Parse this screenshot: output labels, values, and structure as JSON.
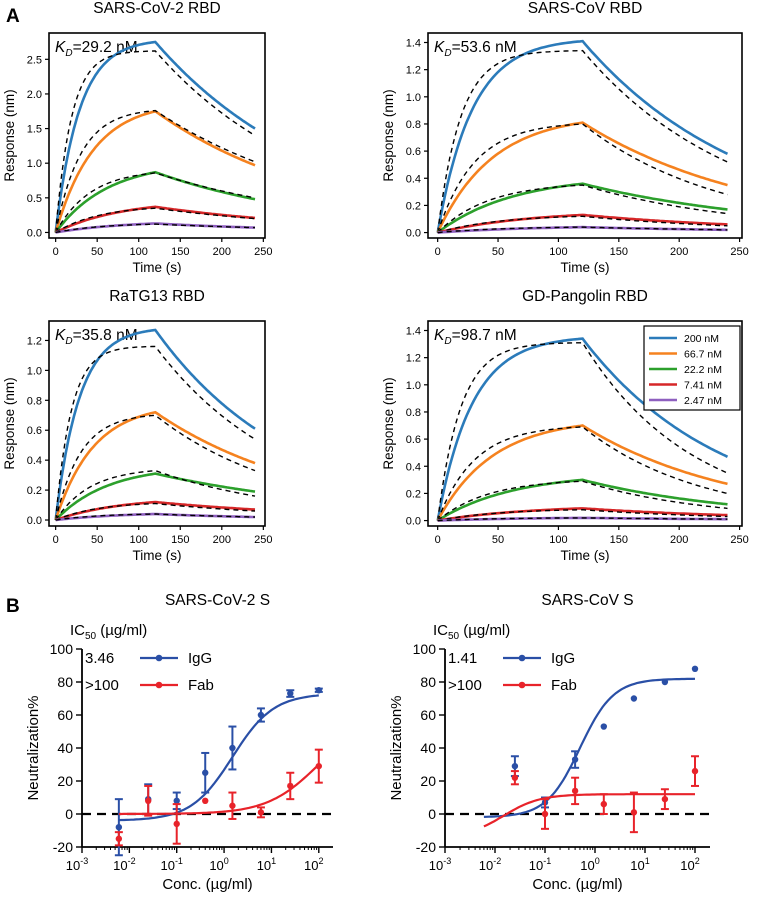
{
  "panel_labels": [
    "A",
    "B"
  ],
  "colors": {
    "c200": "#2b7bba",
    "c66": "#f5821f",
    "c22": "#2ca02c",
    "c7": "#d62728",
    "c2": "#8e5fbf",
    "fit": "#000000",
    "igg": "#2a4fa6",
    "fab": "#e8232a"
  },
  "legend": {
    "items": [
      {
        "label": "200 nM",
        "color": "#2b7bba"
      },
      {
        "label": "66.7 nM",
        "color": "#f5821f"
      },
      {
        "label": "22.2 nM",
        "color": "#2ca02c"
      },
      {
        "label": "7.41 nM",
        "color": "#d62728"
      },
      {
        "label": "2.47 nM",
        "color": "#8e5fbf"
      }
    ]
  },
  "chart_data": [
    {
      "type": "line",
      "title": "SARS-CoV-2 RBD",
      "kd_prefix": "K",
      "kd_sub": "D",
      "kd_value": "=29.2 nM",
      "xlabel": "Time (s)",
      "ylabel": "Response (nm)",
      "xlim": [
        -8,
        252
      ],
      "ylim": [
        -0.08,
        2.88
      ],
      "xticks": [
        "0",
        "50",
        "100",
        "150",
        "200",
        "250"
      ],
      "yticks": [
        "0.0",
        "0.5",
        "1.0",
        "1.5",
        "2.0",
        "2.5"
      ],
      "assoc_end_s": 120,
      "end_s": 240,
      "series": [
        {
          "name": "200 nM",
          "peak": 2.75,
          "end": 1.5,
          "fit_peak": 2.62,
          "fit_end": 1.4
        },
        {
          "name": "66.7 nM",
          "peak": 1.75,
          "end": 0.97,
          "fit_peak": 1.76,
          "fit_end": 1.02
        },
        {
          "name": "22.2 nM",
          "peak": 0.87,
          "end": 0.48,
          "fit_peak": 0.86,
          "fit_end": 0.5
        },
        {
          "name": "7.41 nM",
          "peak": 0.37,
          "end": 0.21,
          "fit_peak": 0.35,
          "fit_end": 0.2
        },
        {
          "name": "2.47 nM",
          "peak": 0.13,
          "end": 0.07,
          "fit_peak": 0.12,
          "fit_end": 0.07
        }
      ]
    },
    {
      "type": "line",
      "title": "SARS-CoV RBD",
      "kd_prefix": "K",
      "kd_sub": "D",
      "kd_value": "=53.6 nM",
      "xlabel": "Time (s)",
      "ylabel": "Response (nm)",
      "xlim": [
        -8,
        252
      ],
      "ylim": [
        -0.04,
        1.47
      ],
      "xticks": [
        "0",
        "50",
        "100",
        "150",
        "200",
        "250"
      ],
      "yticks": [
        "0.0",
        "0.2",
        "0.4",
        "0.6",
        "0.8",
        "1.0",
        "1.2",
        "1.4"
      ],
      "assoc_end_s": 120,
      "end_s": 240,
      "series": [
        {
          "name": "200 nM",
          "peak": 1.41,
          "end": 0.58,
          "fit_peak": 1.34,
          "fit_end": 0.52
        },
        {
          "name": "66.7 nM",
          "peak": 0.81,
          "end": 0.35,
          "fit_peak": 0.8,
          "fit_end": 0.28
        },
        {
          "name": "22.2 nM",
          "peak": 0.36,
          "end": 0.17,
          "fit_peak": 0.35,
          "fit_end": 0.14
        },
        {
          "name": "7.41 nM",
          "peak": 0.13,
          "end": 0.06,
          "fit_peak": 0.12,
          "fit_end": 0.05
        },
        {
          "name": "2.47 nM",
          "peak": 0.04,
          "end": 0.02,
          "fit_peak": 0.04,
          "fit_end": 0.02
        }
      ]
    },
    {
      "type": "line",
      "title": "RaTG13 RBD",
      "kd_prefix": "K",
      "kd_sub": "D",
      "kd_value": "=35.8 nM",
      "xlabel": "Time (s)",
      "ylabel": "Response (nm)",
      "xlim": [
        -8,
        252
      ],
      "ylim": [
        -0.04,
        1.33
      ],
      "xticks": [
        "0",
        "50",
        "100",
        "150",
        "200",
        "250"
      ],
      "yticks": [
        "0.0",
        "0.2",
        "0.4",
        "0.6",
        "0.8",
        "1.0",
        "1.2"
      ],
      "assoc_end_s": 120,
      "end_s": 240,
      "series": [
        {
          "name": "200 nM",
          "peak": 1.27,
          "end": 0.61,
          "fit_peak": 1.16,
          "fit_end": 0.54
        },
        {
          "name": "66.7 nM",
          "peak": 0.72,
          "end": 0.38,
          "fit_peak": 0.7,
          "fit_end": 0.33
        },
        {
          "name": "22.2 nM",
          "peak": 0.31,
          "end": 0.19,
          "fit_peak": 0.33,
          "fit_end": 0.16
        },
        {
          "name": "7.41 nM",
          "peak": 0.12,
          "end": 0.07,
          "fit_peak": 0.11,
          "fit_end": 0.06
        },
        {
          "name": "2.47 nM",
          "peak": 0.04,
          "end": 0.02,
          "fit_peak": 0.04,
          "fit_end": 0.02
        }
      ]
    },
    {
      "type": "line",
      "title": "GD-Pangolin RBD",
      "kd_prefix": "K",
      "kd_sub": "D",
      "kd_value": "=98.7 nM",
      "xlabel": "Time (s)",
      "ylabel": "Response (nm)",
      "xlim": [
        -8,
        252
      ],
      "ylim": [
        -0.04,
        1.47
      ],
      "xticks": [
        "0",
        "50",
        "100",
        "150",
        "200",
        "250"
      ],
      "yticks": [
        "0.0",
        "0.2",
        "0.4",
        "0.6",
        "0.8",
        "1.0",
        "1.2",
        "1.4"
      ],
      "assoc_end_s": 120,
      "end_s": 240,
      "series": [
        {
          "name": "200 nM",
          "peak": 1.34,
          "end": 0.47,
          "fit_peak": 1.31,
          "fit_end": 0.35
        },
        {
          "name": "66.7 nM",
          "peak": 0.7,
          "end": 0.27,
          "fit_peak": 0.69,
          "fit_end": 0.2
        },
        {
          "name": "22.2 nM",
          "peak": 0.3,
          "end": 0.12,
          "fit_peak": 0.29,
          "fit_end": 0.09
        },
        {
          "name": "7.41 nM",
          "peak": 0.09,
          "end": 0.04,
          "fit_peak": 0.08,
          "fit_end": 0.03
        },
        {
          "name": "2.47 nM",
          "peak": 0.02,
          "end": 0.01,
          "fit_peak": 0.02,
          "fit_end": 0.01
        }
      ]
    },
    {
      "type": "scatter",
      "title": "SARS-CoV-2 S",
      "ic50_label": "IC",
      "ic50_sub": "50",
      "ic50_unit": " (µg/ml)",
      "xlabel": "Conc. (µg/ml)",
      "ylabel": "Neutralization%",
      "xlim_log10": [
        -3,
        2.3
      ],
      "ylim": [
        -20,
        100
      ],
      "xticks": [
        {
          "base": "10",
          "exp": "-3"
        },
        {
          "base": "10",
          "exp": "-2"
        },
        {
          "base": "10",
          "exp": "-1"
        },
        {
          "base": "10",
          "exp": "0"
        },
        {
          "base": "10",
          "exp": "1"
        },
        {
          "base": "10",
          "exp": "2"
        }
      ],
      "yticks": [
        "-20",
        "0",
        "20",
        "40",
        "60",
        "80",
        "100"
      ],
      "series": [
        {
          "name": "IgG",
          "ic50": "3.46",
          "points": [
            {
              "x": 0.006,
              "y": -8,
              "err": 17
            },
            {
              "x": 0.025,
              "y": 9,
              "err": 9
            },
            {
              "x": 0.1,
              "y": 8,
              "err": 5
            },
            {
              "x": 0.4,
              "y": 25,
              "err": 12
            },
            {
              "x": 1.5,
              "y": 40,
              "err": 13
            },
            {
              "x": 6,
              "y": 60,
              "err": 4
            },
            {
              "x": 25,
              "y": 73,
              "err": 2
            },
            {
              "x": 100,
              "y": 75,
              "err": 1
            }
          ],
          "fit": {
            "bottom": -4,
            "top": 73,
            "ec50": 1.5,
            "hill": 1
          }
        },
        {
          "name": "Fab",
          "ic50": ">100",
          "points": [
            {
              "x": 0.006,
              "y": -15,
              "err": 4
            },
            {
              "x": 0.025,
              "y": 8,
              "err": 9
            },
            {
              "x": 0.1,
              "y": -6,
              "err": 12
            },
            {
              "x": 0.4,
              "y": 8,
              "err": 0
            },
            {
              "x": 1.5,
              "y": 5,
              "err": 8
            },
            {
              "x": 6,
              "y": 1,
              "err": 3
            },
            {
              "x": 25,
              "y": 17,
              "err": 8
            },
            {
              "x": 100,
              "y": 29,
              "err": 10
            }
          ],
          "fit": {
            "bottom": 0,
            "top": 60,
            "ec50": 100,
            "hill": 0.8
          }
        }
      ]
    },
    {
      "type": "scatter",
      "title": "SARS-CoV S",
      "ic50_label": "IC",
      "ic50_sub": "50",
      "ic50_unit": " (µg/ml)",
      "xlabel": "Conc. (µg/ml)",
      "ylabel": "Neutralization%",
      "xlim_log10": [
        -3,
        2.3
      ],
      "ylim": [
        -20,
        100
      ],
      "xticks": [
        {
          "base": "10",
          "exp": "-3"
        },
        {
          "base": "10",
          "exp": "-2"
        },
        {
          "base": "10",
          "exp": "-1"
        },
        {
          "base": "10",
          "exp": "0"
        },
        {
          "base": "10",
          "exp": "1"
        },
        {
          "base": "10",
          "exp": "2"
        }
      ],
      "yticks": [
        "-20",
        "0",
        "20",
        "40",
        "60",
        "80",
        "100"
      ],
      "series": [
        {
          "name": "IgG",
          "ic50": "1.41",
          "points": [
            {
              "x": 0.025,
              "y": 29,
              "err": 6
            },
            {
              "x": 0.1,
              "y": 7,
              "err": 3
            },
            {
              "x": 0.4,
              "y": 33,
              "err": 5
            },
            {
              "x": 1.5,
              "y": 53,
              "err": 0
            },
            {
              "x": 6,
              "y": 70,
              "err": 0
            },
            {
              "x": 25,
              "y": 80,
              "err": 0
            },
            {
              "x": 100,
              "y": 88,
              "err": 0
            }
          ],
          "fit": {
            "bottom": -2,
            "top": 82,
            "ec50": 0.5,
            "hill": 1.3
          }
        },
        {
          "name": "Fab",
          "ic50": ">100",
          "points": [
            {
              "x": 0.025,
              "y": 22,
              "err": 4
            },
            {
              "x": 0.1,
              "y": 0,
              "err": 9
            },
            {
              "x": 0.4,
              "y": 14,
              "err": 8
            },
            {
              "x": 1.5,
              "y": 6,
              "err": 6
            },
            {
              "x": 6,
              "y": 1,
              "err": 12
            },
            {
              "x": 25,
              "y": 9,
              "err": 6
            },
            {
              "x": 100,
              "y": 26,
              "err": 9
            }
          ],
          "fit": {
            "bottom": -14,
            "top": 12,
            "ec50": 0.015,
            "hill": 1.2
          }
        }
      ]
    }
  ]
}
